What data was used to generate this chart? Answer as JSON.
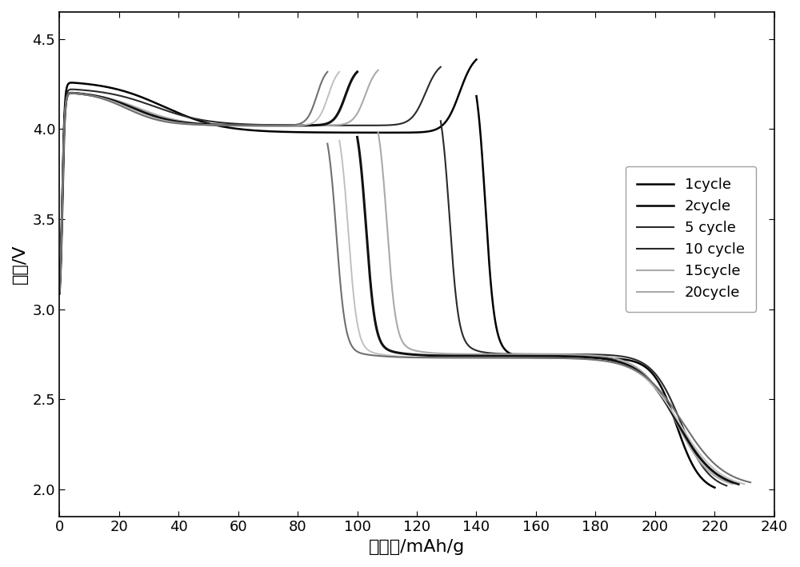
{
  "xlabel": "比容量/mAh/g",
  "ylabel": "电压/V",
  "xlim": [
    0,
    240
  ],
  "ylim": [
    1.85,
    4.65
  ],
  "xticks": [
    0,
    20,
    40,
    60,
    80,
    100,
    120,
    140,
    160,
    180,
    200,
    220,
    240
  ],
  "yticks": [
    2.0,
    2.5,
    3.0,
    3.5,
    4.0,
    4.5
  ],
  "legend_labels": [
    "1cycle",
    "2cycle",
    "5 cycle",
    "10 cycle",
    "15cycle",
    "20cycle"
  ],
  "colors": [
    "#000000",
    "#2a2a2a",
    "#aaaaaa",
    "#111111",
    "#c0c0c0",
    "#707070"
  ],
  "linewidths": [
    1.8,
    1.5,
    1.5,
    2.2,
    1.4,
    1.5
  ],
  "background_color": "#ffffff",
  "cycle_data": [
    {
      "charge_cap": 140,
      "discharge_cap": 220,
      "init_peak": 4.27,
      "plateau_c": 3.98,
      "end_v_c": 4.43,
      "start_v_d": 4.38,
      "plat_drop": 2.83,
      "plat_v": 2.73,
      "end_v_d": 1.98
    },
    {
      "charge_cap": 128,
      "discharge_cap": 224,
      "init_peak": 4.23,
      "plateau_c": 4.02,
      "end_v_c": 4.38,
      "start_v_d": 4.22,
      "plat_drop": 2.82,
      "plat_v": 2.75,
      "end_v_d": 1.99
    },
    {
      "charge_cap": 107,
      "discharge_cap": 226,
      "init_peak": 4.21,
      "plateau_c": 4.02,
      "end_v_c": 4.36,
      "start_v_d": 4.15,
      "plat_drop": 2.8,
      "plat_v": 2.75,
      "end_v_d": 2.0
    },
    {
      "charge_cap": 100,
      "discharge_cap": 228,
      "init_peak": 4.21,
      "plateau_c": 4.02,
      "end_v_c": 4.35,
      "start_v_d": 4.12,
      "plat_drop": 2.79,
      "plat_v": 2.74,
      "end_v_d": 2.0
    },
    {
      "charge_cap": 94,
      "discharge_cap": 230,
      "init_peak": 4.21,
      "plateau_c": 4.02,
      "end_v_c": 4.35,
      "start_v_d": 4.1,
      "plat_drop": 2.78,
      "plat_v": 2.73,
      "end_v_d": 2.0
    },
    {
      "charge_cap": 90,
      "discharge_cap": 232,
      "init_peak": 4.21,
      "plateau_c": 4.02,
      "end_v_c": 4.35,
      "start_v_d": 4.08,
      "plat_drop": 2.77,
      "plat_v": 2.73,
      "end_v_d": 2.01
    }
  ]
}
